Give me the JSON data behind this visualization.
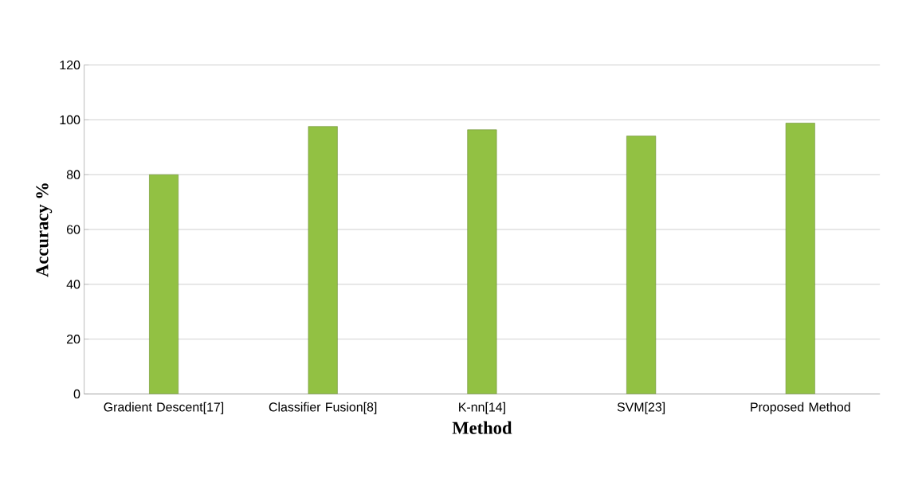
{
  "chart_data": {
    "type": "bar",
    "xlabel": "Method",
    "ylabel": "Accuracy %",
    "categories": [
      "Gradient Descent[17]",
      "Classifier Fusion[8]",
      "K-nn[14]",
      "SVM[23]",
      "Proposed Method"
    ],
    "values": [
      80,
      97.6,
      96.4,
      94.1,
      98.8
    ],
    "color": "#92c143",
    "ylim": [
      0,
      120
    ],
    "yticks": [
      0,
      20,
      40,
      60,
      80,
      100,
      120
    ],
    "grid": "y"
  }
}
